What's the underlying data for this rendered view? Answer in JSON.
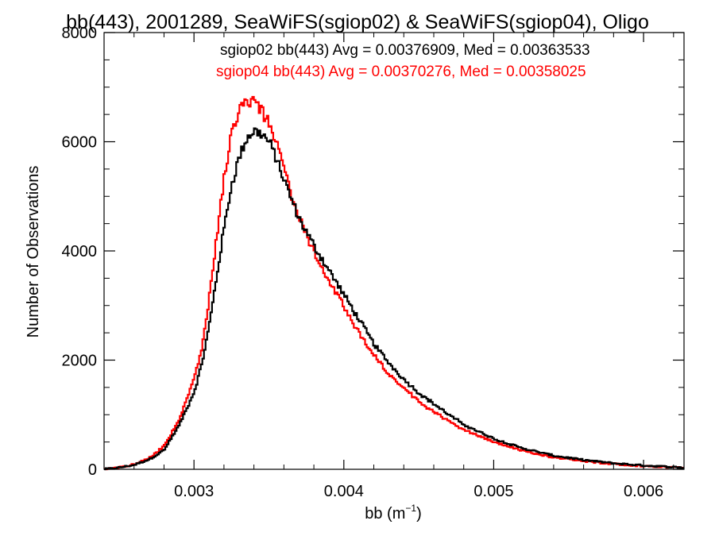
{
  "chart_data": {
    "type": "line",
    "title": "bb(443), 2001289, SeaWiFS(sgiop02) & SeaWiFS(sgiop04), Oligo",
    "xlabel": "bb (m",
    "xlabel_sup": "−1",
    "xlabel_close": ")",
    "ylabel": "Number of Observations",
    "xlim": [
      0.0024,
      0.00627
    ],
    "ylim": [
      0,
      8000
    ],
    "xticks": [
      0.003,
      0.004,
      0.005,
      0.006
    ],
    "xtick_labels": [
      "0.003",
      "0.004",
      "0.005",
      "0.006"
    ],
    "yticks": [
      0,
      2000,
      4000,
      6000,
      8000
    ],
    "ytick_labels": [
      "0",
      "2000",
      "4000",
      "6000",
      "8000"
    ],
    "grid": false,
    "legend": "top-right",
    "series": [
      {
        "name": "sgiop02",
        "legend_text": "sgiop02 bb(443) Avg = 0.00376909, Med = 0.00363533",
        "color": "#000000",
        "x": [
          0.0024,
          0.0025,
          0.0026,
          0.0027,
          0.0028,
          0.0029,
          0.003,
          0.00305,
          0.0031,
          0.00315,
          0.0032,
          0.00325,
          0.0033,
          0.00335,
          0.0034,
          0.00345,
          0.0035,
          0.00355,
          0.0036,
          0.00365,
          0.0037,
          0.0038,
          0.0039,
          0.004,
          0.0041,
          0.0042,
          0.0043,
          0.0044,
          0.0045,
          0.0046,
          0.0047,
          0.0048,
          0.005,
          0.0052,
          0.0054,
          0.0056,
          0.0058,
          0.006,
          0.00627
        ],
        "y": [
          0,
          30,
          80,
          180,
          350,
          800,
          1400,
          1900,
          2600,
          3500,
          4400,
          5200,
          5700,
          6050,
          6200,
          6150,
          6000,
          5700,
          5300,
          4950,
          4600,
          4100,
          3650,
          3200,
          2750,
          2300,
          1950,
          1650,
          1400,
          1200,
          1000,
          820,
          560,
          380,
          250,
          170,
          110,
          70,
          30
        ]
      },
      {
        "name": "sgiop04",
        "legend_text": "sgiop04 bb(443) Avg = 0.00370276, Med = 0.00358025",
        "color": "#ff0000",
        "x": [
          0.0024,
          0.0025,
          0.0026,
          0.0027,
          0.0028,
          0.0029,
          0.003,
          0.00305,
          0.0031,
          0.00315,
          0.0032,
          0.00325,
          0.0033,
          0.00335,
          0.0034,
          0.00345,
          0.0035,
          0.00355,
          0.0036,
          0.00365,
          0.0037,
          0.0038,
          0.0039,
          0.004,
          0.0041,
          0.0042,
          0.0043,
          0.0044,
          0.0045,
          0.0046,
          0.0047,
          0.0048,
          0.005,
          0.0052,
          0.0054,
          0.0056,
          0.0058,
          0.006,
          0.00627
        ],
        "y": [
          0,
          30,
          90,
          200,
          420,
          900,
          1650,
          2200,
          3100,
          4200,
          5300,
          6150,
          6550,
          6700,
          6750,
          6550,
          6350,
          6050,
          5550,
          5000,
          4600,
          4000,
          3450,
          3000,
          2500,
          2100,
          1750,
          1480,
          1250,
          1050,
          880,
          720,
          500,
          330,
          220,
          150,
          100,
          60,
          25
        ]
      }
    ]
  }
}
